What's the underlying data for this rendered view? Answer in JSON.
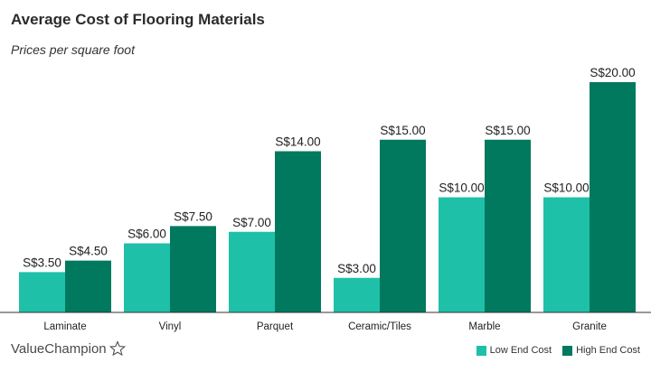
{
  "colors": {
    "low": "#1fc0a8",
    "high": "#00795e",
    "axis": "#333333"
  },
  "brand": {
    "name": "ValueChampion",
    "icon": "star-outline-icon"
  },
  "chart_data": {
    "type": "bar",
    "title": "Average Cost of Flooring Materials",
    "subtitle": "Prices per square foot",
    "categories": [
      "Laminate",
      "Vinyl",
      "Parquet",
      "Ceramic/Tiles",
      "Marble",
      "Granite"
    ],
    "series": [
      {
        "name": "Low End Cost",
        "values": [
          3.5,
          6.0,
          7.0,
          3.0,
          10.0,
          10.0
        ],
        "labels": [
          "S$3.50",
          "S$6.00",
          "S$7.00",
          "S$3.00",
          "S$10.00",
          "S$10.00"
        ]
      },
      {
        "name": "High End Cost",
        "values": [
          4.5,
          7.5,
          14.0,
          15.0,
          15.0,
          20.0
        ],
        "labels": [
          "S$4.50",
          "S$7.50",
          "S$14.00",
          "S$15.00",
          "S$15.00",
          "S$20.00"
        ]
      }
    ],
    "ylim": [
      0,
      20
    ],
    "legend": "bottom-right"
  }
}
